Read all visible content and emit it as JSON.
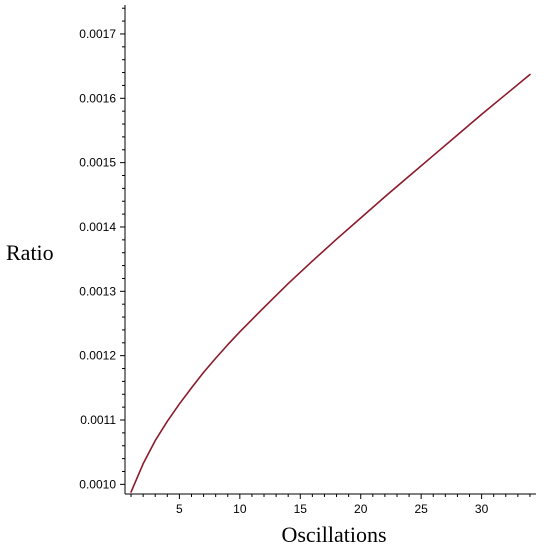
{
  "chart_data": {
    "type": "line",
    "xlabel": "Oscillations",
    "ylabel": "Ratio",
    "xlim": [
      0.5,
      34.5
    ],
    "ylim": [
      0.000985,
      0.001745
    ],
    "x_ticks": [
      5,
      10,
      15,
      20,
      25,
      30
    ],
    "x_tick_labels": [
      "5",
      "10",
      "15",
      "20",
      "25",
      "30"
    ],
    "y_ticks": [
      0.001,
      0.0011,
      0.0012,
      0.0013,
      0.0014,
      0.0015,
      0.0016,
      0.0017
    ],
    "y_tick_labels": [
      "0.0010",
      "0.0011",
      "0.0012",
      "0.0013",
      "0.0014",
      "0.0015",
      "0.0016",
      "0.0017"
    ],
    "grid": false,
    "series": [
      {
        "color": "#8b1a2b",
        "x": [
          1,
          2,
          3,
          4,
          5,
          6,
          7,
          8,
          9,
          10,
          12,
          14,
          16,
          18,
          20,
          22,
          24,
          26,
          28,
          30,
          32,
          34
        ],
        "y": [
          0.000988,
          0.001032,
          0.001068,
          0.001098,
          0.001125,
          0.00115,
          0.001174,
          0.001196,
          0.001217,
          0.001237,
          0.001275,
          0.001312,
          0.001347,
          0.001381,
          0.001414,
          0.001447,
          0.001479,
          0.001511,
          0.001543,
          0.001575,
          0.001606,
          0.001637
        ]
      }
    ]
  }
}
